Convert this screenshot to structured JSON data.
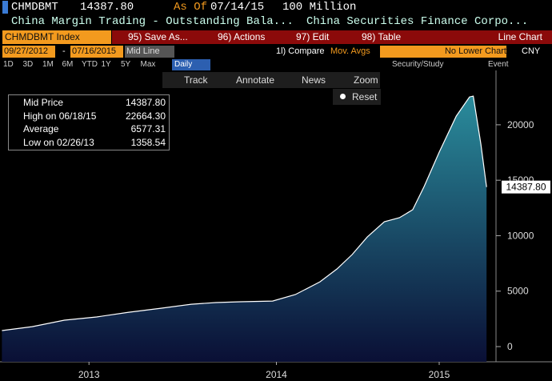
{
  "header": {
    "ticker": "CHMDBMT",
    "price": "14387.80",
    "as_of_label": "As Of",
    "as_of": "07/14/15",
    "units": "100 Million",
    "description": "China Margin Trading - Outstanding Bala...",
    "source": "China Securities Finance Corpo..."
  },
  "menu": {
    "security": "CHMDBMT Index",
    "items": [
      "95) Save As...",
      "96) Actions",
      "97) Edit",
      "98) Table"
    ],
    "chart_type": "Line Chart"
  },
  "settings": {
    "start": "09/27/2012",
    "separator": "-",
    "end": "07/16/2015",
    "line_type": "Mid Line",
    "compare": "1l) Compare",
    "compare_value": "Mov. Avgs",
    "lower_chart": "No Lower Chart",
    "currency": "CNY"
  },
  "periods": [
    "1D",
    "3D",
    "1M",
    "6M",
    "YTD",
    "1Y",
    "5Y",
    "Max"
  ],
  "frequency": "Daily",
  "right_tools": [
    "Security/Study",
    "Event"
  ],
  "chart_tools": [
    "Track",
    "Annotate",
    "News",
    "Zoom"
  ],
  "reset": "Reset",
  "legend": [
    {
      "label": "Mid Price",
      "value": "14387.80"
    },
    {
      "label": "High on 06/18/15",
      "value": "22664.30"
    },
    {
      "label": "Average",
      "value": "6577.31"
    },
    {
      "label": "Low on 02/26/13",
      "value": "1358.54"
    }
  ],
  "chart_data": {
    "type": "area",
    "x": [
      2013.01,
      2013.17,
      2013.34,
      2013.51,
      2013.68,
      2013.85,
      2014.01,
      2014.14,
      2014.27,
      2014.44,
      2014.56,
      2014.69,
      2014.78,
      2014.86,
      2014.94,
      2015.03,
      2015.11,
      2015.18,
      2015.24,
      2015.32,
      2015.41,
      2015.48,
      2015.5,
      2015.54,
      2015.57
    ],
    "values": [
      1443,
      1800,
      2380,
      2670,
      3100,
      3460,
      3820,
      3970,
      4040,
      4110,
      4690,
      5840,
      7000,
      8300,
      9880,
      11260,
      11620,
      12340,
      14430,
      17530,
      20780,
      22510,
      22580,
      18250,
      14387.8
    ],
    "last_value_label": "14387.80",
    "color": "#2a8c9c",
    "line_color": "#ffffff",
    "xlim": [
      2013.0,
      2015.62
    ],
    "xticks": [
      {
        "value": 2013.47,
        "label": "2013"
      },
      {
        "value": 2014.46,
        "label": "2014"
      },
      {
        "value": 2015.32,
        "label": "2015"
      }
    ],
    "ylim": [
      -1370,
      24900
    ],
    "yticks": [
      0,
      5000,
      10000,
      15000,
      20000
    ]
  }
}
